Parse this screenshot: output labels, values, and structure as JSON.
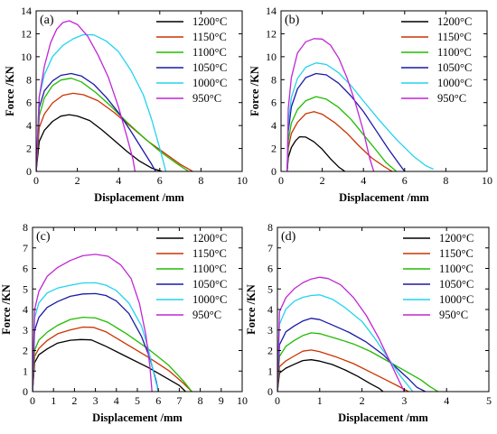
{
  "colors": {
    "1200": "#000000",
    "1150": "#cc3300",
    "1100": "#22bb00",
    "1050": "#1a1aa6",
    "1000": "#22d3ee",
    "950": "#c026d3"
  },
  "chart_data": [
    {
      "type": "line",
      "panel_label": "(a)",
      "xlabel": "Displacement /mm",
      "ylabel": "Force /KN",
      "xlim": [
        0,
        10
      ],
      "ylim": [
        0,
        14
      ],
      "xticks": [
        0,
        2,
        4,
        6,
        8,
        10
      ],
      "yticks": [
        0,
        2,
        4,
        6,
        8,
        10,
        12,
        14
      ],
      "grid": false,
      "legend_position": "top-right",
      "series": [
        {
          "name": "1200°C",
          "color_key": "1200",
          "x": [
            0,
            0.15,
            0.4,
            0.8,
            1.2,
            1.6,
            2.0,
            2.6,
            3.2,
            3.8,
            4.4,
            5.0,
            5.6,
            6.1
          ],
          "y": [
            0,
            2.6,
            3.6,
            4.4,
            4.8,
            4.95,
            4.85,
            4.4,
            3.6,
            2.7,
            1.8,
            0.9,
            0.3,
            0
          ]
        },
        {
          "name": "1150°C",
          "color_key": "1150",
          "x": [
            0,
            0.15,
            0.4,
            0.8,
            1.3,
            1.8,
            2.3,
            3.0,
            3.8,
            4.6,
            5.4,
            6.2,
            7.0,
            7.6
          ],
          "y": [
            0,
            3.8,
            5.0,
            6.0,
            6.6,
            6.8,
            6.7,
            6.2,
            5.1,
            3.9,
            2.7,
            1.6,
            0.6,
            0
          ]
        },
        {
          "name": "1100°C",
          "color_key": "1100",
          "x": [
            0,
            0.15,
            0.4,
            0.8,
            1.2,
            1.7,
            2.2,
            2.9,
            3.6,
            4.4,
            5.2,
            6.0,
            6.8,
            7.4
          ],
          "y": [
            0,
            4.8,
            6.4,
            7.5,
            8.0,
            8.1,
            7.8,
            6.9,
            5.7,
            4.3,
            3.0,
            1.8,
            0.7,
            0
          ]
        },
        {
          "name": "1050°C",
          "color_key": "1050",
          "x": [
            0,
            0.15,
            0.4,
            0.8,
            1.2,
            1.7,
            2.2,
            2.8,
            3.4,
            4.0,
            4.6,
            5.2,
            5.6,
            5.8
          ],
          "y": [
            0,
            5.6,
            7.0,
            7.9,
            8.4,
            8.5,
            8.3,
            7.6,
            6.5,
            5.1,
            3.5,
            1.8,
            0.6,
            0
          ]
        },
        {
          "name": "1000°C",
          "color_key": "1000",
          "x": [
            0,
            0.15,
            0.4,
            0.8,
            1.3,
            1.8,
            2.3,
            2.8,
            3.4,
            4.0,
            4.6,
            5.2,
            5.6,
            6.0,
            6.3
          ],
          "y": [
            0,
            6.5,
            8.4,
            10.0,
            11.0,
            11.6,
            11.9,
            11.9,
            11.4,
            10.4,
            8.8,
            6.7,
            4.6,
            2.0,
            0
          ]
        },
        {
          "name": "950°C",
          "color_key": "950",
          "x": [
            0,
            0.15,
            0.4,
            0.7,
            1.0,
            1.3,
            1.6,
            2.0,
            2.5,
            3.0,
            3.5,
            4.0,
            4.4,
            4.7,
            4.8
          ],
          "y": [
            0,
            6.5,
            9.2,
            11.2,
            12.4,
            13.0,
            13.1,
            12.8,
            11.8,
            10.2,
            8.2,
            5.6,
            3.1,
            1.0,
            0
          ]
        }
      ]
    },
    {
      "type": "line",
      "panel_label": "(b)",
      "xlabel": "Displacement /mm",
      "ylabel": "Force /KN",
      "xlim": [
        0,
        10
      ],
      "ylim": [
        0,
        14
      ],
      "xticks": [
        0,
        2,
        4,
        6,
        8,
        10
      ],
      "yticks": [
        0,
        2,
        4,
        6,
        8,
        10,
        12,
        14
      ],
      "grid": false,
      "legend_position": "top-right",
      "series": [
        {
          "name": "1200°C",
          "color_key": "1200",
          "x": [
            0.3,
            0.35,
            0.5,
            0.7,
            0.9,
            1.2,
            1.6,
            2.0,
            2.4,
            2.8,
            3.1
          ],
          "y": [
            0,
            1.2,
            2.1,
            2.7,
            3.0,
            3.0,
            2.6,
            1.9,
            1.1,
            0.4,
            0
          ]
        },
        {
          "name": "1150°C",
          "color_key": "1150",
          "x": [
            0.3,
            0.35,
            0.5,
            0.8,
            1.2,
            1.6,
            2.0,
            2.6,
            3.2,
            3.8,
            4.4,
            5.0,
            5.4
          ],
          "y": [
            0,
            2.0,
            3.3,
            4.3,
            5.0,
            5.2,
            5.0,
            4.3,
            3.3,
            2.2,
            1.2,
            0.4,
            0
          ]
        },
        {
          "name": "1100°C",
          "color_key": "1100",
          "x": [
            0.3,
            0.35,
            0.5,
            0.8,
            1.2,
            1.7,
            2.2,
            2.8,
            3.4,
            4.0,
            4.6,
            5.1,
            5.6
          ],
          "y": [
            0,
            2.6,
            4.2,
            5.4,
            6.2,
            6.5,
            6.3,
            5.6,
            4.5,
            3.2,
            1.9,
            0.8,
            0
          ]
        },
        {
          "name": "1050°C",
          "color_key": "1050",
          "x": [
            0.3,
            0.35,
            0.5,
            0.8,
            1.2,
            1.7,
            2.2,
            2.8,
            3.4,
            4.0,
            4.6,
            5.2,
            5.7,
            6.0
          ],
          "y": [
            0,
            3.5,
            5.6,
            7.2,
            8.2,
            8.5,
            8.4,
            7.7,
            6.6,
            5.2,
            3.6,
            2.0,
            0.7,
            0
          ]
        },
        {
          "name": "1000°C",
          "color_key": "1000",
          "x": [
            0.3,
            0.35,
            0.5,
            0.8,
            1.2,
            1.7,
            2.2,
            2.8,
            3.4,
            4.0,
            4.8,
            5.6,
            6.4,
            7.0,
            7.4
          ],
          "y": [
            0,
            4.2,
            6.4,
            8.1,
            9.1,
            9.5,
            9.3,
            8.6,
            7.5,
            6.1,
            4.4,
            2.8,
            1.4,
            0.5,
            0.2
          ]
        },
        {
          "name": "950°C",
          "color_key": "950",
          "x": [
            0.3,
            0.35,
            0.5,
            0.8,
            1.2,
            1.6,
            2.0,
            2.4,
            2.8,
            3.2,
            3.6,
            4.0,
            4.3,
            4.5
          ],
          "y": [
            0,
            5.5,
            8.2,
            10.3,
            11.3,
            11.6,
            11.5,
            11.0,
            9.9,
            8.2,
            6.0,
            3.5,
            1.2,
            0
          ]
        }
      ]
    },
    {
      "type": "line",
      "panel_label": "(c)",
      "xlabel": "Displacement /mm",
      "ylabel": "Force /KN",
      "xlim": [
        0,
        10
      ],
      "ylim": [
        0,
        8
      ],
      "xticks": [
        0,
        1,
        2,
        3,
        4,
        5,
        6,
        7,
        8,
        9,
        10
      ],
      "yticks": [
        0,
        1,
        2,
        3,
        4,
        5,
        6,
        7,
        8
      ],
      "grid": false,
      "legend_position": "top-right",
      "series": [
        {
          "name": "1200°C",
          "color_key": "1200",
          "x": [
            0,
            0.1,
            0.3,
            0.7,
            1.2,
            1.8,
            2.3,
            2.8,
            3.5,
            4.5,
            5.5,
            6.3,
            7.0,
            7.3
          ],
          "y": [
            0,
            1.4,
            1.8,
            2.1,
            2.35,
            2.5,
            2.55,
            2.5,
            2.2,
            1.7,
            1.2,
            0.7,
            0.3,
            0
          ]
        },
        {
          "name": "1150°C",
          "color_key": "1150",
          "x": [
            0,
            0.1,
            0.3,
            0.7,
            1.2,
            1.8,
            2.4,
            2.9,
            3.5,
            4.5,
            5.5,
            6.5,
            7.2,
            7.6
          ],
          "y": [
            0,
            1.7,
            2.1,
            2.5,
            2.8,
            3.0,
            3.15,
            3.15,
            2.9,
            2.3,
            1.7,
            1.0,
            0.4,
            0
          ]
        },
        {
          "name": "1100°C",
          "color_key": "1100",
          "x": [
            0,
            0.1,
            0.3,
            0.7,
            1.2,
            1.8,
            2.4,
            3.0,
            3.6,
            4.5,
            5.5,
            6.5,
            7.2,
            7.6
          ],
          "y": [
            0,
            2.0,
            2.5,
            2.9,
            3.25,
            3.5,
            3.62,
            3.6,
            3.35,
            2.8,
            2.1,
            1.3,
            0.5,
            0
          ]
        },
        {
          "name": "1050°C",
          "color_key": "1050",
          "x": [
            0,
            0.1,
            0.3,
            0.7,
            1.2,
            1.8,
            2.4,
            3.0,
            3.5,
            4.0,
            4.6,
            5.2,
            5.6,
            5.9,
            6.0
          ],
          "y": [
            0,
            3.0,
            3.6,
            4.1,
            4.4,
            4.62,
            4.75,
            4.78,
            4.7,
            4.4,
            3.8,
            2.7,
            1.6,
            0.5,
            0
          ]
        },
        {
          "name": "1000°C",
          "color_key": "1000",
          "x": [
            0,
            0.1,
            0.3,
            0.7,
            1.2,
            1.8,
            2.4,
            3.0,
            3.5,
            4.0,
            4.6,
            5.2,
            5.5,
            5.8,
            6.0
          ],
          "y": [
            0,
            3.6,
            4.3,
            4.8,
            5.05,
            5.2,
            5.28,
            5.3,
            5.2,
            4.9,
            4.3,
            3.2,
            2.2,
            0.8,
            0
          ]
        },
        {
          "name": "950°C",
          "color_key": "950",
          "x": [
            0,
            0.1,
            0.3,
            0.7,
            1.2,
            1.8,
            2.4,
            3.0,
            3.6,
            4.2,
            4.7,
            5.1,
            5.4,
            5.6,
            5.7
          ],
          "y": [
            0,
            4.0,
            4.9,
            5.6,
            6.05,
            6.4,
            6.6,
            6.68,
            6.6,
            6.2,
            5.5,
            4.3,
            2.8,
            1.2,
            0
          ]
        }
      ]
    },
    {
      "type": "line",
      "panel_label": "(d)",
      "xlabel": "Displacement /mm",
      "ylabel": "Force /KN",
      "xlim": [
        0,
        5
      ],
      "ylim": [
        0,
        8
      ],
      "xticks": [
        0,
        1,
        2,
        3,
        4,
        5
      ],
      "yticks": [
        0,
        1,
        2,
        3,
        4,
        5,
        6,
        7,
        8
      ],
      "grid": false,
      "legend_position": "top-right",
      "series": [
        {
          "name": "1200°C",
          "color_key": "1200",
          "x": [
            0,
            0.05,
            0.2,
            0.4,
            0.6,
            0.8,
            1.0,
            1.3,
            1.6,
            1.9,
            2.2,
            2.4,
            2.5
          ],
          "y": [
            0,
            0.9,
            1.15,
            1.35,
            1.5,
            1.55,
            1.5,
            1.3,
            1.05,
            0.75,
            0.4,
            0.15,
            0
          ]
        },
        {
          "name": "1150°C",
          "color_key": "1150",
          "x": [
            0,
            0.05,
            0.2,
            0.4,
            0.6,
            0.8,
            1.0,
            1.4,
            1.8,
            2.2,
            2.6,
            2.9,
            3.1
          ],
          "y": [
            0,
            1.2,
            1.5,
            1.75,
            1.95,
            2.02,
            1.95,
            1.7,
            1.35,
            0.95,
            0.55,
            0.2,
            0
          ]
        },
        {
          "name": "1100°C",
          "color_key": "1100",
          "x": [
            0,
            0.05,
            0.2,
            0.4,
            0.6,
            0.8,
            1.0,
            1.4,
            1.8,
            2.2,
            2.6,
            3.0,
            3.4,
            3.6,
            3.8
          ],
          "y": [
            0,
            1.7,
            2.2,
            2.5,
            2.75,
            2.85,
            2.82,
            2.6,
            2.3,
            1.95,
            1.5,
            1.05,
            0.55,
            0.25,
            0
          ]
        },
        {
          "name": "1050°C",
          "color_key": "1050",
          "x": [
            0,
            0.05,
            0.2,
            0.4,
            0.6,
            0.8,
            1.0,
            1.3,
            1.7,
            2.1,
            2.5,
            2.8,
            3.1,
            3.3,
            3.5
          ],
          "y": [
            0,
            2.3,
            2.9,
            3.2,
            3.45,
            3.55,
            3.5,
            3.25,
            2.9,
            2.4,
            1.8,
            1.2,
            0.6,
            0.2,
            0
          ]
        },
        {
          "name": "1000°C",
          "color_key": "1000",
          "x": [
            0,
            0.05,
            0.2,
            0.4,
            0.6,
            0.8,
            1.0,
            1.3,
            1.6,
            2.0,
            2.3,
            2.6,
            2.9,
            3.1,
            3.2
          ],
          "y": [
            0,
            3.3,
            4.0,
            4.4,
            4.6,
            4.7,
            4.7,
            4.5,
            4.1,
            3.4,
            2.6,
            1.7,
            0.8,
            0.25,
            0
          ]
        },
        {
          "name": "950°C",
          "color_key": "950",
          "x": [
            0,
            0.05,
            0.2,
            0.4,
            0.6,
            0.8,
            1.0,
            1.2,
            1.5,
            1.8,
            2.1,
            2.4,
            2.7,
            2.9,
            3.0
          ],
          "y": [
            0,
            3.9,
            4.6,
            5.0,
            5.3,
            5.5,
            5.55,
            5.5,
            5.2,
            4.6,
            3.7,
            2.6,
            1.3,
            0.4,
            0
          ]
        }
      ]
    }
  ]
}
